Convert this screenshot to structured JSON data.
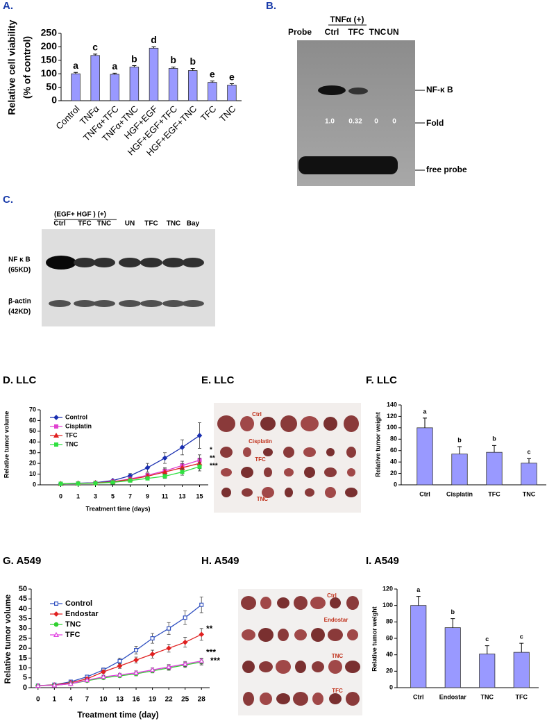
{
  "chart_data": [
    {
      "type": "bar",
      "title": "A.",
      "y_label": [
        "Relative cell viability",
        "(% of control)"
      ],
      "categories": [
        "Control",
        "TNFα",
        "TNFα+TFC",
        "TNFα+TNC",
        "HGF+EGF",
        "HGF+EGF+TFC",
        "HGF+EGF+TNC",
        "TFC",
        "TNC"
      ],
      "values": [
        100,
        168,
        98,
        125,
        195,
        120,
        112,
        68,
        58
      ],
      "errors": [
        5,
        5,
        4,
        5,
        5,
        5,
        8,
        5,
        5
      ],
      "annotations": [
        "a",
        "c",
        "a",
        "b",
        "d",
        "b",
        "b",
        "e",
        "e"
      ],
      "color": "#9999ff",
      "ylim": [
        0,
        250
      ],
      "yticks": [
        0,
        50,
        100,
        150,
        200,
        250
      ]
    },
    {
      "type": "line",
      "title": "D. LLC",
      "y_label": "Relative tumor volume",
      "x_label": "Treatment time (days)",
      "categories": [
        "0",
        "1",
        "3",
        "5",
        "7",
        "9",
        "11",
        "13",
        "15"
      ],
      "series": [
        {
          "name": "Control",
          "color": "#1a2fb0",
          "marker": "diamond",
          "values": [
            1,
            1.5,
            2,
            4,
            8.5,
            16,
            25,
            35,
            46
          ],
          "errors": [
            0.3,
            0.4,
            0.5,
            1,
            2,
            4,
            5,
            7,
            12
          ]
        },
        {
          "name": "Cisplatin",
          "color": "#e040d0",
          "marker": "square",
          "values": [
            1,
            1.3,
            1.8,
            3,
            5.5,
            9,
            13,
            18,
            23
          ],
          "errors": [
            0.2,
            0.3,
            0.4,
            0.7,
            1.5,
            2,
            3,
            4,
            5
          ]
        },
        {
          "name": "TFC",
          "color": "#e02020",
          "marker": "triangle",
          "values": [
            1,
            1.3,
            1.7,
            2.8,
            5,
            8,
            12,
            16,
            20
          ],
          "errors": [
            0.2,
            0.3,
            0.4,
            0.7,
            1.5,
            2,
            3,
            4,
            5
          ]
        },
        {
          "name": "TNC",
          "color": "#30e040",
          "marker": "square",
          "values": [
            1,
            1.2,
            1.5,
            2.3,
            4,
            6,
            8,
            12,
            17
          ],
          "errors": [
            0.2,
            0.3,
            0.4,
            0.6,
            1,
            1.5,
            2,
            3,
            4
          ]
        }
      ],
      "annotations": [
        "*",
        "**",
        "***"
      ],
      "ylim": [
        0,
        70
      ],
      "yticks": [
        0,
        10,
        20,
        30,
        40,
        50,
        60,
        70
      ]
    },
    {
      "type": "bar",
      "title": "F. LLC",
      "y_label": "Relative tumor weight",
      "categories": [
        "Ctrl",
        "Cisplatin",
        "TFC",
        "TNC"
      ],
      "values": [
        100,
        54,
        57,
        38
      ],
      "errors": [
        17,
        13,
        12,
        8
      ],
      "annotations": [
        "a",
        "b",
        "b",
        "c"
      ],
      "color": "#9999ff",
      "ylim": [
        0,
        140
      ],
      "yticks": [
        0,
        20,
        40,
        60,
        80,
        100,
        120,
        140
      ]
    },
    {
      "type": "line",
      "title": "G. A549",
      "y_label": "Relative tumor volume",
      "x_label": "Treatment time (day)",
      "categories": [
        "0",
        "1",
        "4",
        "7",
        "10",
        "13",
        "16",
        "19",
        "22",
        "25",
        "28"
      ],
      "series": [
        {
          "name": "Control",
          "color": "#3050c0",
          "marker": "open-square",
          "values": [
            1,
            1.5,
            3,
            5.5,
            9,
            13.5,
            19,
            25,
            30,
            35.5,
            42
          ],
          "errors": [
            0.2,
            0.3,
            0.5,
            0.8,
            1,
            1.5,
            2,
            2.5,
            3,
            3.5,
            4
          ]
        },
        {
          "name": "Endostar",
          "color": "#e02020",
          "marker": "diamond",
          "values": [
            1,
            1.4,
            2.5,
            4.5,
            8,
            11,
            14,
            17,
            20,
            23,
            27
          ],
          "errors": [
            0.2,
            0.3,
            0.4,
            0.6,
            1,
            1.2,
            1.5,
            2,
            2,
            2.5,
            3
          ]
        },
        {
          "name": "TNC",
          "color": "#30d030",
          "marker": "circle",
          "values": [
            1,
            1.2,
            2,
            3.5,
            5,
            6,
            7,
            8.5,
            10,
            11.5,
            13
          ],
          "errors": [
            0.2,
            0.2,
            0.3,
            0.5,
            0.7,
            0.8,
            1,
            1,
            1.2,
            1.3,
            1.5
          ]
        },
        {
          "name": "TFC",
          "color": "#e040e0",
          "marker": "open-triangle",
          "values": [
            1,
            1.2,
            2,
            3.8,
            5.5,
            6.5,
            7.5,
            9,
            10.5,
            12,
            13.5
          ],
          "errors": [
            0.2,
            0.2,
            0.3,
            0.5,
            0.7,
            0.8,
            1,
            1,
            1.2,
            1.3,
            1.5
          ]
        }
      ],
      "annotations": [
        "**",
        "***",
        "***"
      ],
      "ylim": [
        0,
        50
      ],
      "yticks": [
        0,
        5,
        10,
        15,
        20,
        25,
        30,
        35,
        40,
        45,
        50
      ]
    },
    {
      "type": "bar",
      "title": "I. A549",
      "y_label": "Relative tumor weight",
      "categories": [
        "Ctrl",
        "Endostar",
        "TNC",
        "TFC"
      ],
      "values": [
        100,
        73,
        41,
        43
      ],
      "errors": [
        11,
        11,
        10,
        11
      ],
      "annotations": [
        "a",
        "b",
        "c",
        "c"
      ],
      "color": "#9999ff",
      "ylim": [
        0,
        120
      ],
      "yticks": [
        0,
        20,
        40,
        60,
        80,
        100,
        120
      ]
    }
  ],
  "panel_b": {
    "title": "B.",
    "header": "TNFα   (+)",
    "lanes": [
      "Probe",
      "Ctrl",
      "TFC",
      "TNC",
      "UN"
    ],
    "labels": [
      "NF-κ B",
      "Fold",
      "free probe"
    ],
    "fold": [
      "1.0",
      "0.32",
      "0",
      "0"
    ]
  },
  "panel_c": {
    "title": "C.",
    "header": "(EGF+ HGF ) (+)",
    "lanes": [
      "Ctrl",
      "TFC",
      "TNC",
      "UN",
      "TFC",
      "TNC",
      "Bay"
    ],
    "rows": [
      "NF κ B",
      "(65KD)",
      "β-actin",
      "(42KD)"
    ]
  },
  "panel_e": {
    "title": "E. LLC",
    "labels": [
      "Ctrl",
      "Cisplatin",
      "TFC",
      "TNC"
    ]
  },
  "panel_h": {
    "title": "H. A549",
    "labels": [
      "Ctrl",
      "Endostar",
      "TNC",
      "TFC"
    ]
  }
}
